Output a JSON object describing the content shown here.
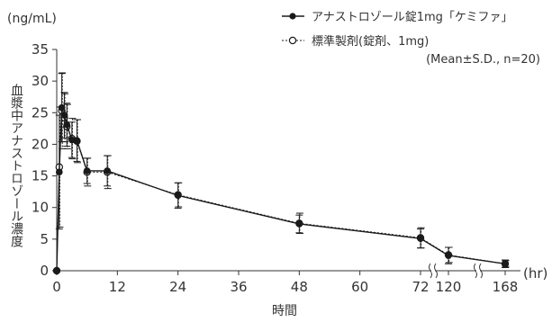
{
  "chart_data": {
    "type": "line",
    "title": "",
    "xlabel": "時間",
    "ylabel": "血漿中アナストロゾール濃度",
    "x_unit": "(hr)",
    "y_unit": "(ng/mL)",
    "stats_note": "(Mean±S.D., n=20)",
    "ylim": [
      0,
      35
    ],
    "yticks": [
      0,
      5,
      10,
      15,
      20,
      25,
      30,
      35
    ],
    "xticks": [
      0,
      12,
      24,
      36,
      48,
      60,
      72,
      120,
      168
    ],
    "x_axis_breaks": [
      "72-120",
      "120-168"
    ],
    "grid": false,
    "legend_position": "top-right",
    "series": [
      {
        "name": "アナストロゾール錠1mg「ケミファ」",
        "marker": "filled-circle",
        "line_style": "solid",
        "color": "#1a1a1a",
        "x": [
          0,
          0.5,
          1,
          1.5,
          2,
          3,
          4,
          6,
          10,
          24,
          48,
          72,
          120,
          168
        ],
        "y": [
          0,
          15.6,
          25.8,
          24.6,
          23.1,
          20.7,
          20.6,
          15.8,
          15.8,
          11.9,
          7.4,
          5.1,
          2.4,
          1.1
        ],
        "sd": [
          0,
          9.0,
          5.4,
          3.6,
          3.4,
          2.8,
          3.3,
          2.0,
          2.4,
          2.0,
          1.4,
          1.5,
          1.3,
          0.6
        ]
      },
      {
        "name": "標準製剤(錠剤、1mg)",
        "marker": "open-circle",
        "line_style": "dotted",
        "color": "#1a1a1a",
        "x": [
          0,
          0.5,
          1,
          1.5,
          2,
          3,
          4,
          6,
          10,
          24,
          48,
          72,
          120,
          168
        ],
        "y": [
          0,
          16.4,
          25.3,
          24.2,
          22.8,
          20.9,
          20.5,
          15.6,
          15.6,
          12.0,
          7.5,
          5.2,
          2.5,
          1.1
        ],
        "sd": [
          0,
          9.5,
          6.0,
          3.8,
          3.5,
          3.2,
          3.4,
          2.2,
          2.6,
          1.9,
          1.6,
          1.6,
          1.2,
          0.5
        ]
      }
    ]
  }
}
